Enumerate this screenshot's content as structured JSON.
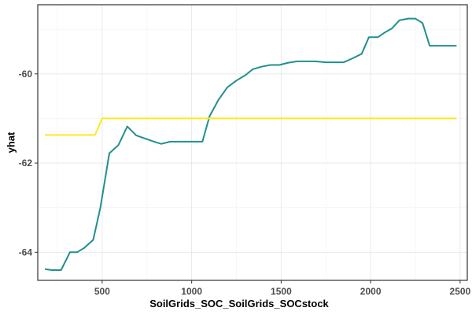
{
  "chart_data": {
    "type": "line",
    "title": "",
    "xlabel": "SoilGrids_SOC_SoilGrids_SOCstock",
    "ylabel": "yhat",
    "xlim": [
      140,
      2540
    ],
    "ylim": [
      -64.63,
      -58.45
    ],
    "x_ticks": [
      500,
      1000,
      1500,
      2000,
      2500
    ],
    "y_ticks": [
      -64,
      -62,
      -60
    ],
    "x_tick_labels": [
      "500",
      "1000",
      "1500",
      "2000",
      "2500"
    ],
    "y_tick_labels": [
      "-64",
      "-62",
      "-60"
    ],
    "grid": true,
    "legend": "none",
    "series": [
      {
        "color": "#21908C",
        "points": [
          [
            180,
            -64.38
          ],
          [
            220,
            -64.4
          ],
          [
            270,
            -64.4
          ],
          [
            320,
            -64.0
          ],
          [
            360,
            -64.0
          ],
          [
            400,
            -63.9
          ],
          [
            450,
            -63.72
          ],
          [
            490,
            -63.0
          ],
          [
            540,
            -61.78
          ],
          [
            590,
            -61.6
          ],
          [
            640,
            -61.18
          ],
          [
            690,
            -61.38
          ],
          [
            740,
            -61.45
          ],
          [
            790,
            -61.52
          ],
          [
            830,
            -61.57
          ],
          [
            880,
            -61.52
          ],
          [
            960,
            -61.52
          ],
          [
            1060,
            -61.52
          ],
          [
            1100,
            -60.95
          ],
          [
            1150,
            -60.58
          ],
          [
            1200,
            -60.3
          ],
          [
            1250,
            -60.15
          ],
          [
            1300,
            -60.03
          ],
          [
            1340,
            -59.9
          ],
          [
            1390,
            -59.84
          ],
          [
            1440,
            -59.8
          ],
          [
            1490,
            -59.8
          ],
          [
            1540,
            -59.75
          ],
          [
            1590,
            -59.72
          ],
          [
            1640,
            -59.72
          ],
          [
            1690,
            -59.72
          ],
          [
            1750,
            -59.74
          ],
          [
            1800,
            -59.74
          ],
          [
            1850,
            -59.74
          ],
          [
            1900,
            -59.65
          ],
          [
            1950,
            -59.55
          ],
          [
            1990,
            -59.18
          ],
          [
            2040,
            -59.18
          ],
          [
            2080,
            -59.07
          ],
          [
            2120,
            -58.98
          ],
          [
            2160,
            -58.8
          ],
          [
            2210,
            -58.76
          ],
          [
            2250,
            -58.76
          ],
          [
            2290,
            -58.86
          ],
          [
            2330,
            -59.37
          ],
          [
            2380,
            -59.37
          ],
          [
            2430,
            -59.37
          ],
          [
            2480,
            -59.37
          ]
        ]
      },
      {
        "color": "#FDE725",
        "points": [
          [
            180,
            -61.37
          ],
          [
            460,
            -61.37
          ],
          [
            500,
            -61.0
          ],
          [
            1100,
            -61.0
          ],
          [
            2480,
            -61.0
          ]
        ]
      }
    ]
  }
}
